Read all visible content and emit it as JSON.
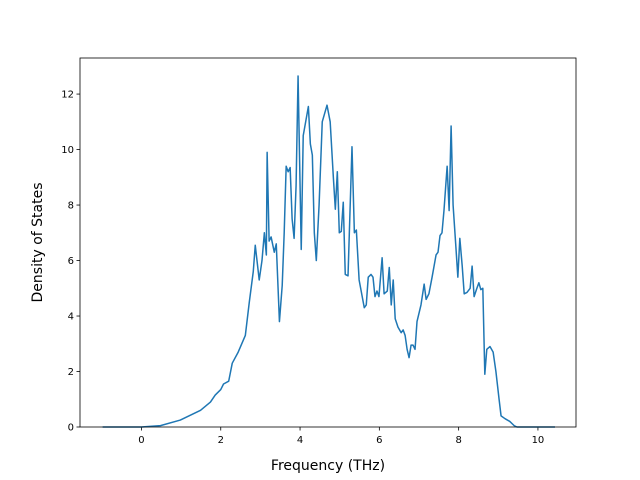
{
  "chart_data": {
    "type": "line",
    "x_label": "Frequency (THz)",
    "y_label": "Density of States",
    "x": [
      -0.98,
      0,
      0.48,
      0.98,
      1.49,
      1.74,
      1.86,
      2.0,
      2.07,
      2.2,
      2.29,
      2.44,
      2.62,
      2.72,
      2.82,
      2.87,
      2.97,
      3.04,
      3.1,
      3.15,
      3.17,
      3.22,
      3.27,
      3.35,
      3.4,
      3.48,
      3.55,
      3.6,
      3.65,
      3.7,
      3.75,
      3.8,
      3.85,
      3.9,
      3.95,
      4.03,
      4.08,
      4.21,
      4.26,
      4.31,
      4.36,
      4.41,
      4.48,
      4.56,
      4.68,
      4.76,
      4.84,
      4.89,
      4.94,
      4.99,
      5.04,
      5.09,
      5.14,
      5.21,
      5.31,
      5.37,
      5.42,
      5.49,
      5.62,
      5.67,
      5.72,
      5.79,
      5.84,
      5.89,
      5.94,
      5.99,
      6.07,
      6.12,
      6.2,
      6.25,
      6.3,
      6.35,
      6.4,
      6.47,
      6.55,
      6.6,
      6.65,
      6.7,
      6.75,
      6.8,
      6.85,
      6.9,
      6.95,
      7.05,
      7.13,
      7.18,
      7.25,
      7.33,
      7.38,
      7.43,
      7.48,
      7.53,
      7.58,
      7.63,
      7.71,
      7.76,
      7.81,
      7.86,
      7.93,
      7.98,
      8.03,
      8.09,
      8.14,
      8.21,
      8.29,
      8.34,
      8.39,
      8.46,
      8.51,
      8.56,
      8.61,
      8.66,
      8.71,
      8.79,
      8.87,
      8.94,
      9.02,
      9.07,
      9.17,
      9.29,
      9.4,
      9.47,
      10.43
    ],
    "series": [
      {
        "color": "#1f77b4",
        "values": [
          0,
          0,
          0.05,
          0.25,
          0.6,
          0.9,
          1.15,
          1.35,
          1.55,
          1.65,
          2.3,
          2.7,
          3.3,
          4.5,
          5.6,
          6.55,
          5.3,
          6.0,
          7.0,
          6.2,
          9.9,
          6.7,
          6.85,
          6.3,
          6.6,
          3.8,
          5.1,
          7.0,
          9.4,
          9.2,
          9.35,
          7.5,
          6.8,
          8.7,
          12.65,
          6.4,
          10.5,
          11.55,
          10.2,
          9.8,
          7.0,
          6.0,
          8.0,
          11.0,
          11.6,
          11.0,
          9.0,
          7.85,
          9.2,
          7.0,
          7.05,
          8.1,
          5.5,
          5.45,
          10.1,
          7.0,
          7.1,
          5.3,
          4.3,
          4.4,
          5.4,
          5.5,
          5.4,
          4.7,
          4.9,
          4.7,
          6.1,
          4.8,
          4.9,
          5.75,
          4.4,
          5.3,
          3.9,
          3.6,
          3.4,
          3.5,
          3.3,
          2.8,
          2.5,
          2.95,
          2.95,
          2.8,
          3.8,
          4.4,
          5.15,
          4.6,
          4.8,
          5.4,
          5.8,
          6.2,
          6.3,
          6.9,
          7.0,
          7.8,
          9.4,
          7.8,
          10.85,
          8.0,
          6.5,
          5.4,
          6.8,
          5.8,
          4.8,
          4.85,
          5.0,
          5.8,
          4.7,
          5.0,
          5.2,
          4.95,
          5.0,
          1.9,
          2.8,
          2.9,
          2.7,
          2.0,
          1.0,
          0.4,
          0.3,
          0.2,
          0.05,
          0,
          0
        ]
      }
    ],
    "xlim": [
      -1.55,
      10.96
    ],
    "ylim": [
      0,
      13.3
    ],
    "xticks": [
      0,
      2,
      4,
      6,
      8,
      10
    ],
    "yticks": [
      0,
      2,
      4,
      6,
      8,
      10,
      12
    ]
  }
}
